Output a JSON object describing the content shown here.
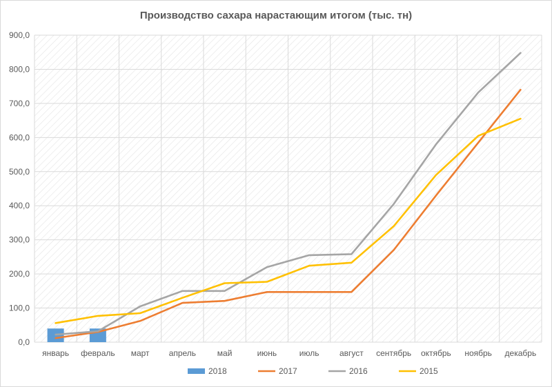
{
  "chart_data": {
    "type": "line",
    "title": "Производство сахара нарастающим итогом (тыс. тн)",
    "categories": [
      "январь",
      "февраль",
      "март",
      "апрель",
      "май",
      "июнь",
      "июль",
      "август",
      "сентябрь",
      "октябрь",
      "ноябрь",
      "декабрь"
    ],
    "ylim": [
      0,
      900
    ],
    "yticks": [
      "0,0",
      "100,0",
      "200,0",
      "300,0",
      "400,0",
      "500,0",
      "600,0",
      "700,0",
      "800,0",
      "900,0"
    ],
    "grid": true,
    "plot_background": "diagonal-hatch",
    "legend_position": "bottom",
    "series": [
      {
        "name": "2018",
        "kind": "bar",
        "color": "#5b9bd5",
        "values": [
          40,
          40,
          null,
          null,
          null,
          null,
          null,
          null,
          null,
          null,
          null,
          null
        ]
      },
      {
        "name": "2017",
        "kind": "line",
        "color": "#ed7d31",
        "values": [
          12,
          30,
          62,
          115,
          121,
          147,
          147,
          147,
          270,
          430,
          585,
          740
        ]
      },
      {
        "name": "2016",
        "kind": "line",
        "color": "#a5a5a5",
        "values": [
          22,
          32,
          105,
          150,
          150,
          220,
          255,
          258,
          405,
          580,
          732,
          848
        ]
      },
      {
        "name": "2015",
        "kind": "line",
        "color": "#ffc000",
        "values": [
          56,
          77,
          85,
          130,
          173,
          177,
          224,
          233,
          340,
          490,
          605,
          655
        ]
      }
    ]
  }
}
